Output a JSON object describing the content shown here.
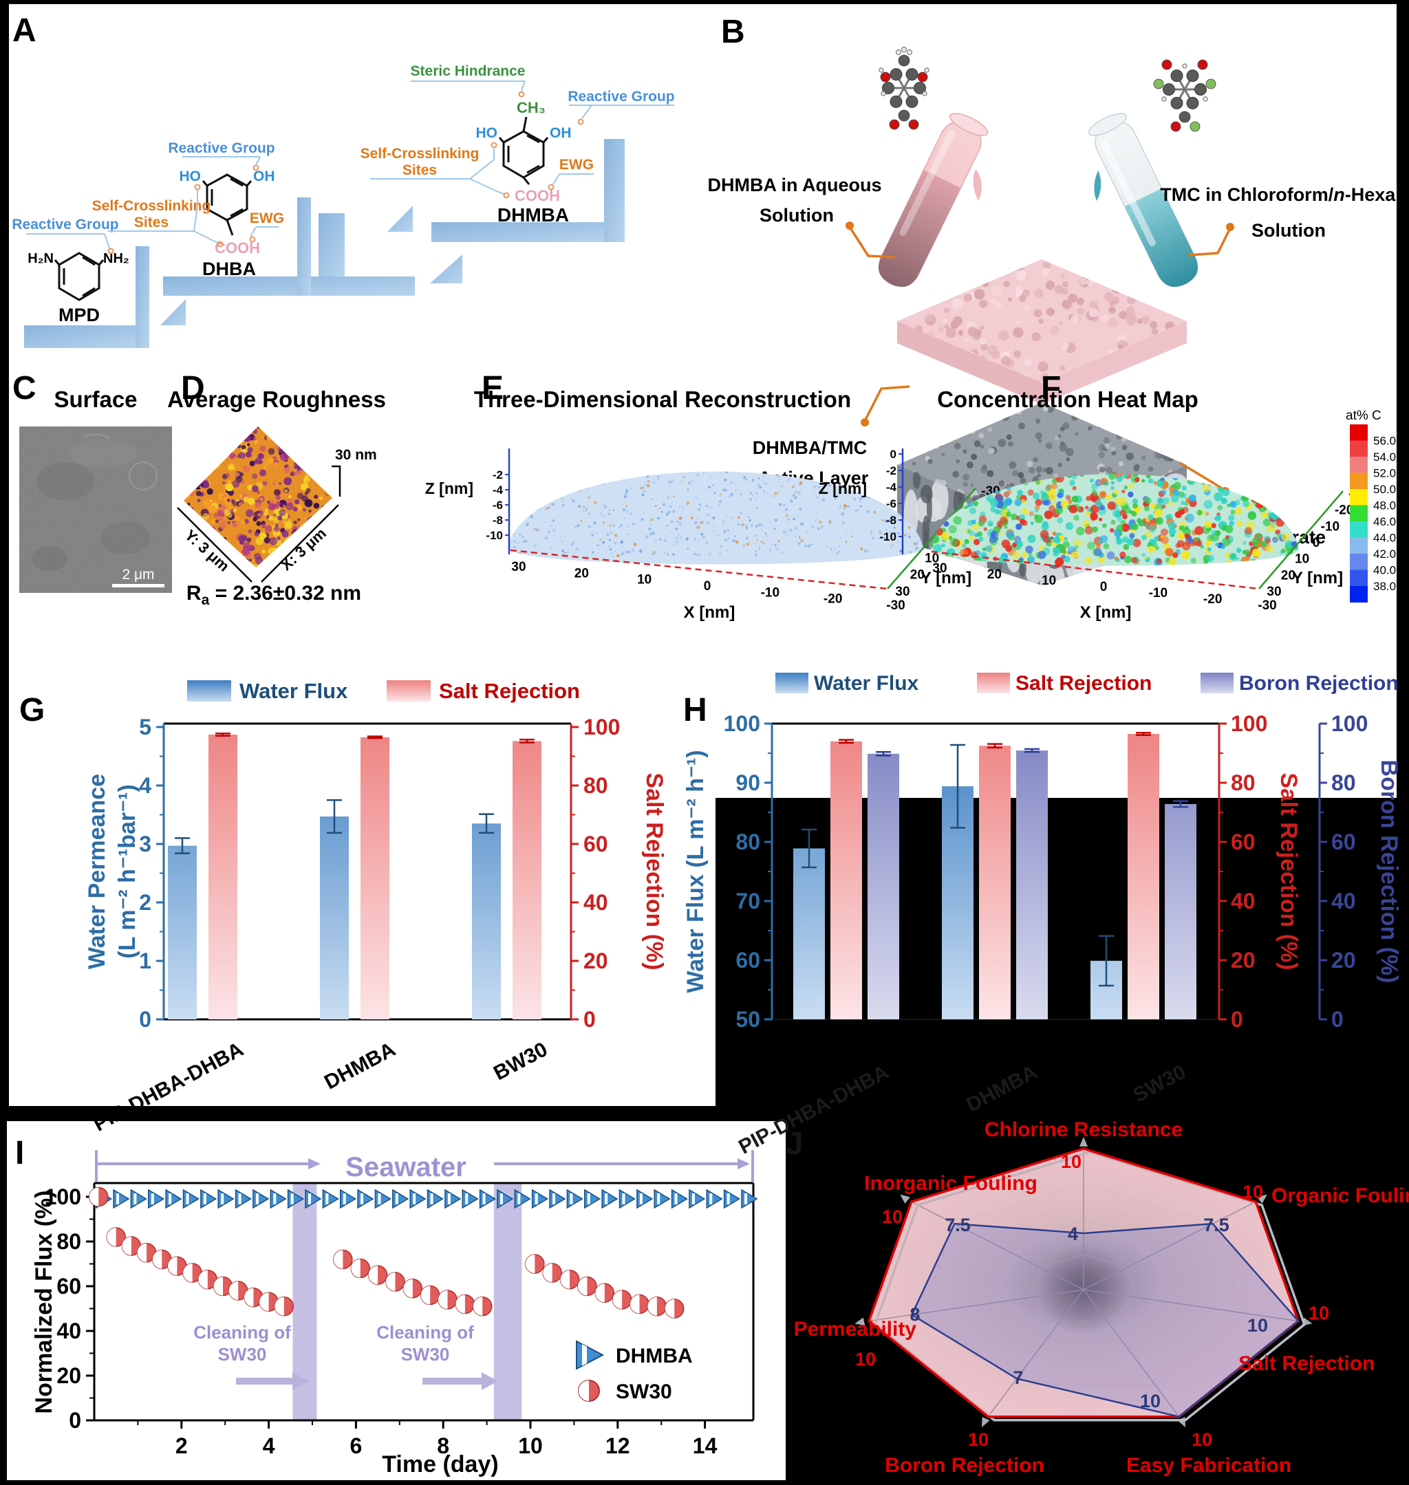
{
  "panels": {
    "a": {
      "label": "A",
      "annotations": {
        "reactive_group": "Reactive Group",
        "self_crosslinking_1": "Self-Crosslinking",
        "self_crosslinking_2": "Sites",
        "ewg": "EWG",
        "steric": "Steric Hindrance"
      },
      "molecules": {
        "mpd": {
          "name": "MPD",
          "amine_left": "H₂N",
          "amine_right": "NH₂"
        },
        "dhba": {
          "name": "DHBA",
          "ho": "HO",
          "oh": "OH",
          "cooh": "COOH"
        },
        "dhmba": {
          "name": "DHMBA",
          "ho": "HO",
          "oh": "OH",
          "cooh": "COOH",
          "ch3": "CH₃"
        }
      }
    },
    "b": {
      "label": "B",
      "dhmba_solution_1": "DHMBA in Aqueous",
      "dhmba_solution_2": "Solution",
      "tmc_pre": "TMC in Chloroform/",
      "tmc_n": "n",
      "tmc_post": "-Hexane",
      "tmc_line2": "Solution",
      "active_layer_1": "DHMBA/TMC",
      "active_layer_2": "Active Layer",
      "pes": "PES Substrate"
    },
    "c": {
      "label": "C",
      "title": "Surface",
      "scalebar": "2 μm"
    },
    "d": {
      "label": "D",
      "title": "Average Roughness",
      "scale": "30 nm",
      "y_axis": "Y: 3 μm",
      "x_axis": "X: 3 μm",
      "ra_r": "R",
      "ra_sub": "a",
      "ra_value": " = 2.36±0.32 nm"
    },
    "e": {
      "label": "E",
      "title": "Three-Dimensional Reconstruction",
      "z_label": "Z [nm]",
      "x_label": "X [nm]",
      "y_label": "Y [nm]",
      "z_ticks": [
        "-2",
        "-4",
        "-6",
        "-8",
        "-10"
      ],
      "x_ticks": [
        "30",
        "20",
        "10",
        "0",
        "-10",
        "-20",
        "-30"
      ],
      "y_ticks": [
        "30",
        "20",
        "10",
        "0",
        "-10",
        "-20",
        "-30"
      ]
    },
    "f": {
      "label": "F",
      "title": "Concentration Heat Map",
      "z_label": "Z [nm]",
      "x_label": "X [nm]",
      "y_label": "Y [nm]",
      "z_ticks": [
        "0",
        "-2",
        "-4",
        "-6",
        "-8",
        "-10"
      ],
      "x_ticks": [
        "30",
        "20",
        "10",
        "0",
        "-10",
        "-20",
        "-30"
      ],
      "y_ticks": [
        "30",
        "20",
        "10",
        "0",
        "-10",
        "-20",
        "-30"
      ],
      "colorbar_title": "at% C",
      "colorbar_ticks": [
        "56.0",
        "54.0",
        "52.0",
        "50.0",
        "48.0",
        "46.0",
        "44.0",
        "42.0",
        "40.0",
        "38.0"
      ],
      "colorbar_colors": [
        "#e60000",
        "#ef4040",
        "#f08080",
        "#f59a20",
        "#ffee00",
        "#33dd33",
        "#33ddcc",
        "#88bbee",
        "#6688ee",
        "#3355ee",
        "#0022ee"
      ]
    },
    "g": {
      "label": "G",
      "legend": [
        "Water Flux",
        "Salt Rejection"
      ],
      "ylabel_left_1": "Water Permeance",
      "ylabel_left_2": "(L m⁻² h⁻¹bar⁻¹)",
      "ylabel_right": "Salt Rejection (%)"
    },
    "h": {
      "label": "H",
      "legend": [
        "Water Flux",
        "Salt Rejection",
        "Boron Rejection"
      ],
      "ylabel_left": "Water Flux (L m⁻² h⁻¹)",
      "ylabel_right1": "Salt Rejection (%)",
      "ylabel_right2": "Boron Rejection (%)"
    },
    "i": {
      "label": "I",
      "seawater": "Seawater",
      "ylabel": "Normalized Flux (%)",
      "xlabel": "Time (day)",
      "cleaning_1": "Cleaning of",
      "cleaning_2": "SW30",
      "legend": [
        "DHMBA",
        "SW30"
      ]
    },
    "j": {
      "label": "J"
    }
  },
  "colors": {
    "axis_blue": "#2e6da5",
    "axis_red": "#cc1f1f",
    "axis_indigo": "#3a4596",
    "purple": "#9d92d2",
    "radar_red": "#e10000",
    "radar_navy": "#2c3a75",
    "annotation_blue": "#4a90d9",
    "annotation_orange": "#e07818",
    "annotation_green": "#3d9141",
    "cooh_pink": "#e8a2b4",
    "stair_blue": "#9dc3e6"
  },
  "chart_data": [
    {
      "type": "bar",
      "panel": "G",
      "categories": [
        "PIP-DHBA-DHBA",
        "DHMBA",
        "BW30"
      ],
      "series": [
        {
          "name": "Water Flux",
          "axis": "left",
          "values": [
            2.97,
            3.47,
            3.35
          ],
          "errors": [
            0.13,
            0.28,
            0.16
          ]
        },
        {
          "name": "Salt Rejection",
          "axis": "right",
          "values": [
            97.4,
            96.5,
            95.2
          ],
          "errors": [
            0.4,
            0.3,
            0.5
          ]
        }
      ],
      "left_axis": {
        "label": "Water Permeance (L m⁻² h⁻¹bar⁻¹)",
        "min": 0,
        "max": 5,
        "ticks": [
          0,
          1,
          2,
          3,
          4,
          5
        ]
      },
      "right_axis": {
        "label": "Salt Rejection (%)",
        "min": 0,
        "max": 100,
        "ticks": [
          0,
          20,
          40,
          60,
          80,
          100
        ]
      }
    },
    {
      "type": "bar",
      "panel": "H",
      "categories": [
        "PIP-DHBA-DHBA",
        "DHMBA",
        "SW30"
      ],
      "series": [
        {
          "name": "Water Flux",
          "axis": "left",
          "values": [
            78.9,
            89.4,
            59.9
          ],
          "errors": [
            3.2,
            7.0,
            4.2
          ]
        },
        {
          "name": "Salt Rejection",
          "axis": "right1",
          "values": [
            94.0,
            92.5,
            96.5
          ],
          "errors": [
            0.5,
            0.6,
            0.4
          ]
        },
        {
          "name": "Boron Rejection",
          "axis": "right2",
          "values": [
            89.8,
            90.9,
            72.8
          ],
          "errors": [
            0.6,
            0.5,
            1.0
          ]
        }
      ],
      "left_axis": {
        "label": "Water Flux (L m⁻² h⁻¹)",
        "min": 50,
        "max": 100,
        "ticks": [
          50,
          60,
          70,
          80,
          90,
          100
        ]
      },
      "right_axis1": {
        "label": "Salt Rejection (%)",
        "min": 0,
        "max": 100,
        "ticks": [
          0,
          20,
          40,
          60,
          80,
          100
        ]
      },
      "right_axis2": {
        "label": "Boron Rejection (%)",
        "min": 0,
        "max": 100,
        "ticks": [
          0,
          20,
          40,
          60,
          80,
          100
        ]
      }
    },
    {
      "type": "line",
      "panel": "I",
      "xlabel": "Time (day)",
      "ylabel": "Normalized Flux (%)",
      "x_ticks": [
        2,
        4,
        6,
        8,
        10,
        12,
        14
      ],
      "y_ticks": [
        0,
        20,
        40,
        60,
        80,
        100
      ],
      "xlim": [
        0,
        15.1
      ],
      "ylim": [
        0,
        106
      ],
      "series": [
        {
          "name": "DHMBA",
          "marker": "triangle",
          "days": [
            0.2,
            0.6,
            1.0,
            1.4,
            1.8,
            2.2,
            2.6,
            3.0,
            3.4,
            3.8,
            4.2,
            4.6,
            5.0,
            5.4,
            5.8,
            6.2,
            6.6,
            7.0,
            7.4,
            7.8,
            8.2,
            8.6,
            9.0,
            9.4,
            9.8,
            10.2,
            10.6,
            11.0,
            11.4,
            11.8,
            12.2,
            12.6,
            13.0,
            13.4,
            13.8,
            14.2,
            14.6,
            15.0
          ],
          "values": [
            100,
            100,
            100,
            100,
            100,
            100,
            100,
            100,
            100,
            100,
            100,
            100,
            100,
            100,
            100,
            100,
            100,
            100,
            100,
            100,
            100,
            100,
            100,
            100,
            100,
            100,
            100,
            100,
            100,
            100,
            100,
            100,
            100,
            100,
            100,
            100,
            100,
            100
          ]
        },
        {
          "name": "SW30",
          "marker": "half-circle",
          "days": [
            0.1,
            0.5,
            0.85,
            1.2,
            1.55,
            1.9,
            2.25,
            2.6,
            2.95,
            3.3,
            3.65,
            4.0,
            4.35,
            5.7,
            6.1,
            6.5,
            6.9,
            7.3,
            7.7,
            8.1,
            8.5,
            8.9,
            10.1,
            10.5,
            10.9,
            11.3,
            11.7,
            12.1,
            12.5,
            12.9,
            13.3
          ],
          "values": [
            100,
            82,
            78,
            75,
            72,
            69,
            66,
            63,
            60,
            58,
            55,
            53,
            51,
            72,
            68,
            65,
            62,
            59,
            56,
            54,
            52,
            51,
            70,
            66,
            63,
            60,
            57,
            54,
            52,
            51,
            50
          ]
        }
      ],
      "cleaning_bands": [
        {
          "day_start": 4.55,
          "day_end": 5.1
        },
        {
          "day_start": 9.16,
          "day_end": 9.8
        }
      ]
    },
    {
      "type": "radar",
      "panel": "J",
      "max": 10,
      "axes": [
        "Chlorine Resistance",
        "Organic Fouling",
        "Salt Rejection",
        "Easy Fabrication",
        "Boron Rejection",
        "Permeability",
        "Inorganic Fouling"
      ],
      "axis_tip_labels": [
        "10",
        "10",
        "10",
        "10",
        "10",
        "10",
        "10"
      ],
      "series": [
        {
          "name": "red",
          "values": [
            10,
            10,
            10,
            10,
            10,
            10,
            10
          ]
        },
        {
          "name": "blue",
          "values": [
            4,
            7.5,
            10,
            10,
            7,
            8,
            7.5
          ]
        }
      ],
      "inner_value_labels": [
        "4",
        "7.5",
        "10",
        "10",
        "7",
        "8",
        "7.5"
      ]
    }
  ]
}
